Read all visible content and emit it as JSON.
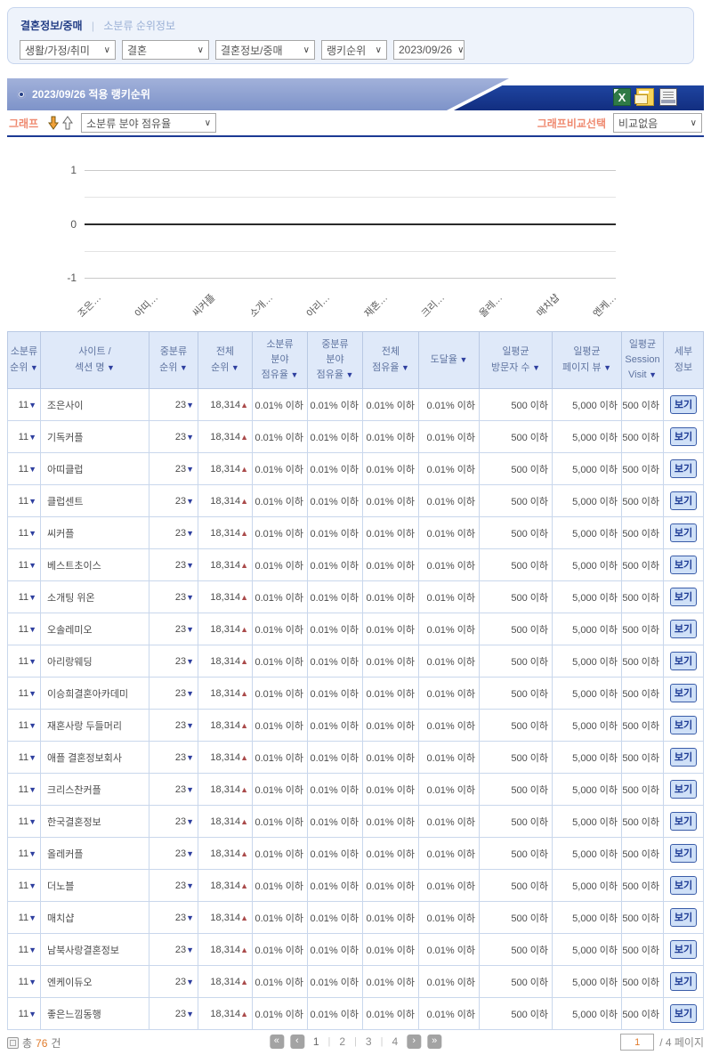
{
  "colors": {
    "accent_navy": "#1c3a94",
    "bar_periwinkle": "#8e9fd0",
    "accent_orange_label": "#ef8a70",
    "accent_orange_count": "#e07b2c",
    "header_bg": "#dfe9f9",
    "rank_up_red": "#aa4a4a",
    "sort_down_navy": "#2e3f9f"
  },
  "icons": {
    "chevron_down": "∨"
  },
  "filter_bar": {
    "breadcrumb": {
      "primary": "결혼정보/중매",
      "separator": "|",
      "secondary": "소분류 순위정보"
    },
    "selects": [
      {
        "value": "생활/가정/취미"
      },
      {
        "value": "결혼"
      },
      {
        "value": "결혼정보/중매"
      },
      {
        "value": "랭키순위"
      },
      {
        "value": "2023/09/26"
      }
    ]
  },
  "title_bar": {
    "title": "2023/09/26 적용 랭키순위"
  },
  "graph_controls": {
    "label": "그래프",
    "metric_select": "소분류 분야 점유율",
    "compare_label": "그래프비교선택",
    "compare_select": "비교없음"
  },
  "chart_data": {
    "type": "line",
    "title": "소분류 분야 점유율",
    "x_labels": [
      "조은…",
      "아띠…",
      "씨커플",
      "소개…",
      "아리…",
      "재혼…",
      "크리…",
      "올레…",
      "매치샵",
      "엔케…"
    ],
    "y_ticks": [
      1,
      0,
      -1
    ],
    "ylim": [
      -1,
      1
    ],
    "grid": true,
    "legend": "none",
    "series": []
  },
  "table": {
    "sort_arrow": "▼",
    "columns": [
      {
        "id": "sub_rank",
        "lines": [
          "소분류",
          "순위"
        ],
        "sort": true
      },
      {
        "id": "site",
        "lines": [
          "사이트 /",
          "섹션 명"
        ],
        "sort": true
      },
      {
        "id": "mid_rank",
        "lines": [
          "중분류",
          "순위"
        ],
        "sort": true
      },
      {
        "id": "total_rank",
        "lines": [
          "전체",
          "순위"
        ],
        "sort": true
      },
      {
        "id": "sub_share",
        "lines": [
          "소분류",
          "분야",
          "점유율"
        ],
        "sort": true
      },
      {
        "id": "mid_share",
        "lines": [
          "중분류",
          "분야",
          "점유율"
        ],
        "sort": true
      },
      {
        "id": "total_share",
        "lines": [
          "전체",
          "점유율"
        ],
        "sort": true
      },
      {
        "id": "reach",
        "lines": [
          "도달율"
        ],
        "sort": true
      },
      {
        "id": "daily_visitors",
        "lines": [
          "일평균",
          "방문자 수"
        ],
        "sort": true
      },
      {
        "id": "daily_pageviews",
        "lines": [
          "일평균",
          "페이지 뷰"
        ],
        "sort": true
      },
      {
        "id": "daily_session",
        "lines": [
          "일평균",
          "Session",
          "Visit"
        ],
        "sort": true
      },
      {
        "id": "detail",
        "lines": [
          "세부",
          "정보"
        ],
        "sort": false
      }
    ],
    "row_common": {
      "sub_rank": "11",
      "sub_rank_arrow": "▼",
      "mid_rank": "23",
      "mid_rank_arrow": "▼",
      "total_rank": "18,314",
      "total_rank_arrow": "▲",
      "sub_share": "0.01% 이하",
      "mid_share": "0.01% 이하",
      "total_share": "0.01% 이하",
      "reach": "0.01% 이하",
      "daily_visitors": "500 이하",
      "daily_pageviews": "5,000 이하",
      "daily_session": "500 이하",
      "detail_button": "보기"
    },
    "sites": [
      "조은사이",
      "기독커플",
      "아띠클럽",
      "클럽센트",
      "씨커플",
      "베스트초이스",
      "소개팅 위온",
      "오솔레미오",
      "아리랑웨딩",
      "이승희결혼아카데미",
      "재혼사랑 두들머리",
      "애플 결혼정보회사",
      "크리스찬커플",
      "한국결혼정보",
      "올레커플",
      "더노블",
      "매치샵",
      "남북사랑결혼정보",
      "엔케이듀오",
      "좋은느낌동행"
    ]
  },
  "footer": {
    "total_label_prefix": "총",
    "total_count": "76",
    "total_label_suffix": "건",
    "nav": {
      "first": "«",
      "prev": "‹",
      "next": "›",
      "last": "»"
    },
    "pages": [
      "1",
      "2",
      "3",
      "4"
    ],
    "page_input": "1",
    "page_total_label": "/ 4 페이지"
  }
}
